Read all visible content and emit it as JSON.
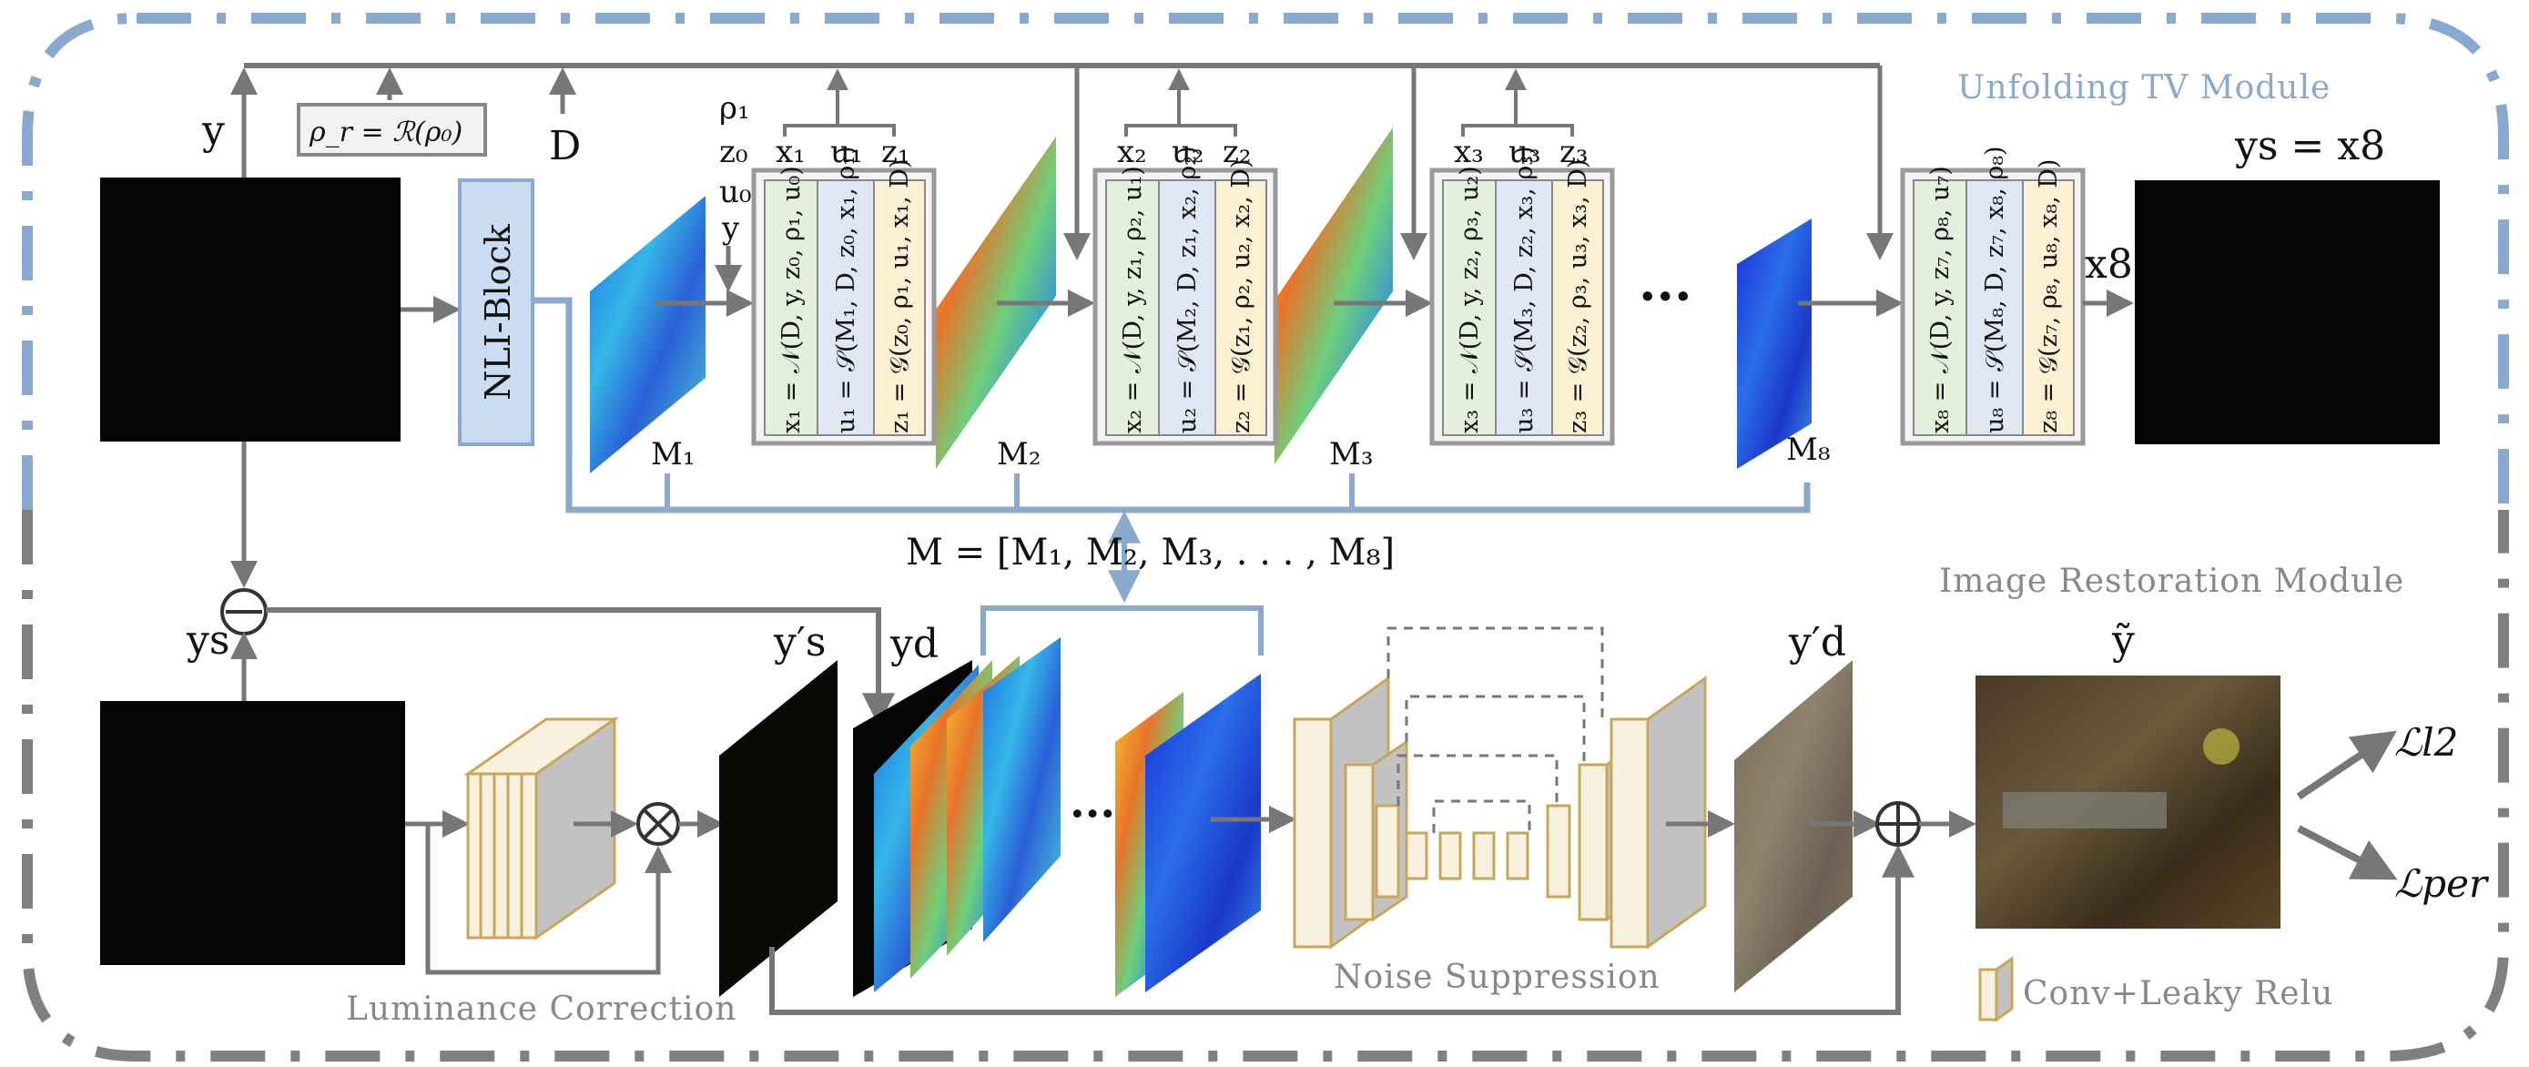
{
  "colors": {
    "blue_dash": "#8aa9cf",
    "gray_dash": "#808080",
    "arrow": "#777777",
    "nli_fill": "#c9dcf2",
    "nli_stroke": "#8aa9cf",
    "green_col": "#e3f1dc",
    "blue_col": "#dfe6f4",
    "yellow_col": "#fbf0d2",
    "conv_fill": "#f8f1df",
    "conv_stroke": "#c8a65a",
    "conv_side": "#c2c2c2"
  },
  "top": {
    "module_title": "Unfolding  TV  Module",
    "y_label": "y",
    "rho_box": "ρ_r = ℛ(ρ₀)",
    "d_label": "D",
    "nli_label": "NLI-Block",
    "inputs_first": [
      "ρ₁",
      "z₀",
      "u₀",
      "y"
    ],
    "output_label": "ys = x8",
    "x8_label": "x8",
    "dots": "···",
    "m_equation": "M = [M₁, M₂, M₃, . . . , M₈]",
    "stages": [
      {
        "id": "1",
        "outs": [
          "x₁",
          "u₁",
          "z₁"
        ],
        "eqs": [
          "x₁ = 𝒩(D, y, z₀, ρ₁, u₀)",
          "u₁ = 𝒮(M₁, D, z₀, x₁, ρ₁)",
          "z₁ = 𝒢(z₀, ρ₁, u₁, x₁, D)"
        ],
        "map_label": "M₁"
      },
      {
        "id": "2",
        "outs": [
          "x₂",
          "u₂",
          "z₂"
        ],
        "eqs": [
          "x₂ = 𝒩(D, y, z₁, ρ₂, u₁)",
          "u₂ = 𝒮(M₂, D, z₁, x₂, ρ₂)",
          "z₂ = 𝒢(z₁, ρ₂, u₂, x₂, D)"
        ],
        "map_label": "M₂"
      },
      {
        "id": "3",
        "outs": [
          "x₃",
          "u₃",
          "z₃"
        ],
        "eqs": [
          "x₃ = 𝒩(D, y, z₂, ρ₃, u₂)",
          "u₃ = 𝒮(M₃, D, z₂, x₃, ρ₃)",
          "z₃ = 𝒢(z₂, ρ₃, u₃, x₃, D)"
        ],
        "map_label": "M₃"
      },
      {
        "id": "8",
        "outs": [],
        "eqs": [
          "x₈ = 𝒩(D, y, z₇, ρ₈, u₇)",
          "u₈ = 𝒮(M₈, D, z₇, x₈, ρ₈)",
          "z₈ = 𝒢(z₇, ρ₈, u₈, x₈, D)"
        ],
        "map_label": "M₈"
      }
    ]
  },
  "bottom": {
    "module_title": "Image Restoration Module",
    "ys_label": "ys",
    "ys_prime": "y′s",
    "yd_label": "yd",
    "yd_prime": "y′d",
    "ytilde": "ỹ",
    "luminance_label": "Luminance  Correction",
    "noise_label": "Noise Suppression",
    "loss_l2": "ℒl2",
    "loss_per": "ℒper",
    "legend_label": "Conv+Leaky Relu",
    "dots": "···"
  }
}
